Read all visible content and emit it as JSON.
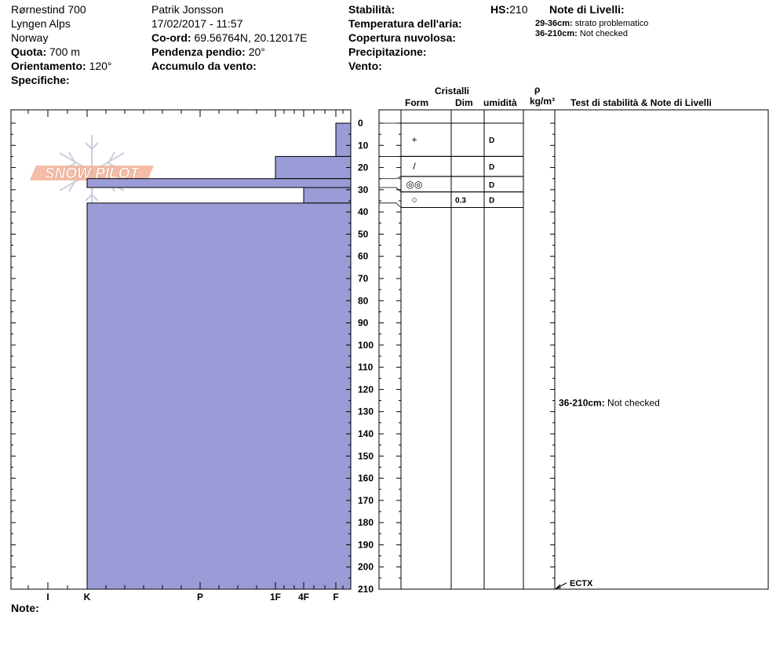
{
  "header": {
    "location": "Rørnestind 700",
    "range": "Lyngen Alps",
    "country": "Norway",
    "elevation_label": "Quota:",
    "elevation_value": "700 m",
    "aspect_label": "Orientamento:",
    "aspect_value": "120°",
    "specifics_label": "Specifiche:",
    "observer": "Patrik Jonsson",
    "datetime": "17/02/2017 - 11:57",
    "coord_label": "Co-ord:",
    "coord_value": "69.56764N, 20.12017E",
    "slope_label": "Pendenza pendio:",
    "slope_value": "20°",
    "wind_loading_label": "Accumulo da vento:",
    "stability_label": "Stabilità:",
    "air_temp_label": "Temperatura dell'aria:",
    "sky_label": "Copertura nuvolosa:",
    "precip_label": "Precipitazione:",
    "wind_label": "Vento:",
    "hs_label": "HS:",
    "hs_value": "210",
    "layer_notes_title": "Note di Livelli:",
    "layer_notes": [
      {
        "range": "29-36cm:",
        "text": "strato problematico"
      },
      {
        "range": "36-210cm:",
        "text": "Not checked"
      }
    ]
  },
  "columns": {
    "crystals": "Cristalli",
    "form": "Form",
    "size": "Dim",
    "moisture": "umidità",
    "density_symbol": "ρ",
    "density_unit": "kg/m³",
    "notes": "Test di stabilità & Note di Livelli"
  },
  "footer": {
    "note_label": "Note:"
  },
  "watermark": "SNOW PILOT",
  "chart_data": {
    "type": "bar",
    "orientation": "horizontal",
    "y_axis": {
      "label": "",
      "min": 0,
      "max": 210,
      "ticks": [
        0,
        10,
        20,
        30,
        40,
        50,
        60,
        70,
        80,
        90,
        100,
        110,
        120,
        130,
        140,
        150,
        160,
        170,
        180,
        190,
        200,
        210
      ],
      "direction": "top-to-bottom"
    },
    "x_axis": {
      "categories": [
        "I",
        "K",
        "P",
        "1F",
        "4F",
        "F"
      ],
      "direction": "right-to-left"
    },
    "hardness_profile": [
      {
        "top": 0,
        "bottom": 15,
        "hardness": "F"
      },
      {
        "top": 15,
        "bottom": 25,
        "hardness": "1F"
      },
      {
        "top": 25,
        "bottom": 29,
        "hardness": "K"
      },
      {
        "top": 29,
        "bottom": 36,
        "hardness": "4F"
      },
      {
        "top": 36,
        "bottom": 210,
        "hardness": "K"
      }
    ],
    "layers": [
      {
        "top": 0,
        "bottom": 15,
        "form": "+",
        "form_icon": "precipitation-particles-icon",
        "size": "",
        "moisture": "D"
      },
      {
        "top": 15,
        "bottom": 24,
        "form": "/",
        "form_icon": "decomposing-fragments-icon",
        "size": "",
        "moisture": "D"
      },
      {
        "top": 24,
        "bottom": 31,
        "form": "◎◎",
        "form_icon": "melt-freeze-crust-icon",
        "size": "",
        "moisture": "D"
      },
      {
        "top": 31,
        "bottom": 38,
        "form": "○",
        "form_icon": "rounded-grains-icon",
        "size": "0.3",
        "moisture": "D"
      }
    ],
    "stability_tests": [
      {
        "depth": 210,
        "label": "ECTX"
      }
    ],
    "annotations": [
      {
        "depth": 126,
        "range": "36-210cm:",
        "text": "Not checked"
      }
    ],
    "colors": {
      "bar_fill": "#9b9bd7",
      "bar_stroke": "#000000",
      "watermark": "#f2b199"
    }
  }
}
